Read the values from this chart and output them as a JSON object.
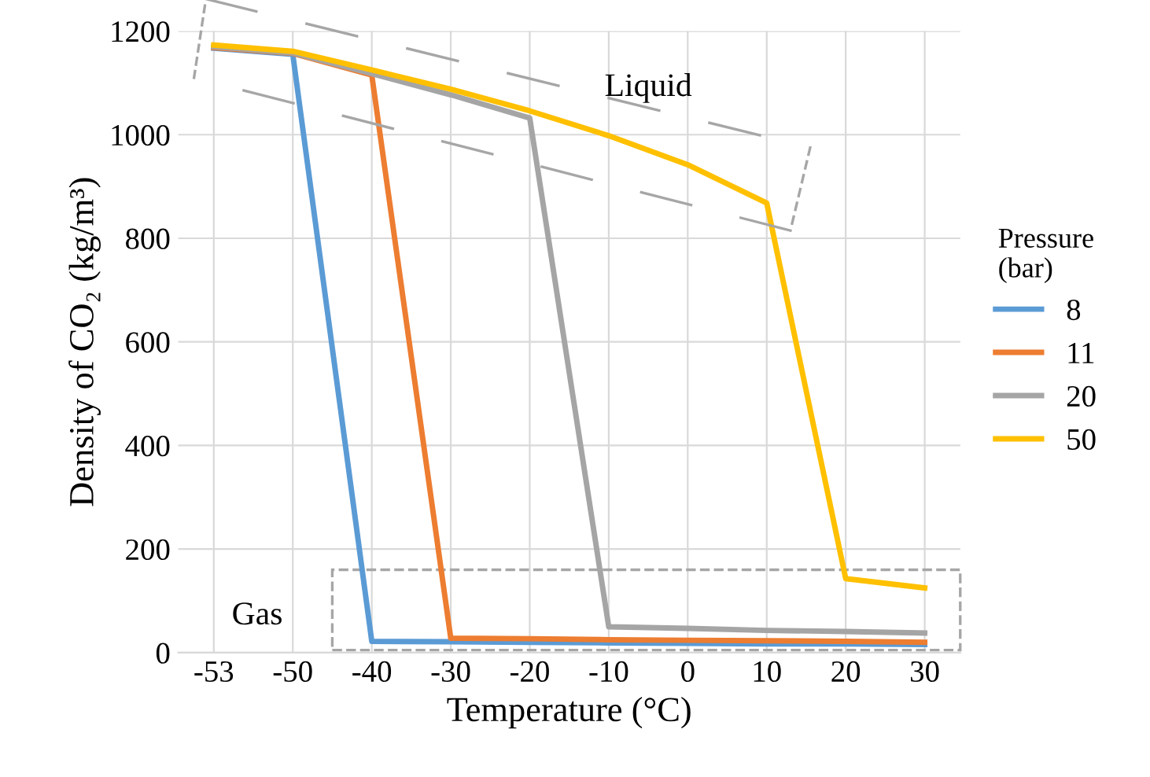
{
  "chart_data": {
    "type": "line",
    "xlabel": "Temperature (°C)",
    "ylabel": "Density of CO₂ (kg/m³)",
    "legend_title": "Pressure\n(bar)",
    "categories": [
      "-53",
      "-50",
      "-40",
      "-30",
      "-20",
      "-10",
      "0",
      "10",
      "20",
      "30"
    ],
    "series": [
      {
        "name": "8",
        "color": "#5b9bd5",
        "values": [
          1167,
          1155,
          22,
          21,
          20,
          19,
          18,
          17,
          17,
          16
        ]
      },
      {
        "name": "11",
        "color": "#ed7d31",
        "values": [
          1168,
          1157,
          1115,
          28,
          27,
          25,
          24,
          23,
          22,
          20
        ]
      },
      {
        "name": "20",
        "color": "#a5a5a5",
        "values": [
          1170,
          1158,
          1118,
          1077,
          1032,
          50,
          47,
          43,
          41,
          38
        ]
      },
      {
        "name": "50",
        "color": "#ffc000",
        "values": [
          1173,
          1161,
          1125,
          1088,
          1046,
          998,
          942,
          868,
          143,
          125
        ]
      }
    ],
    "ylim": [
      0,
      1200
    ],
    "yticks": [
      0,
      200,
      400,
      600,
      800,
      1000,
      1200
    ],
    "grid": true,
    "legend": "right",
    "annotations": [
      "Liquid",
      "Gas"
    ]
  }
}
